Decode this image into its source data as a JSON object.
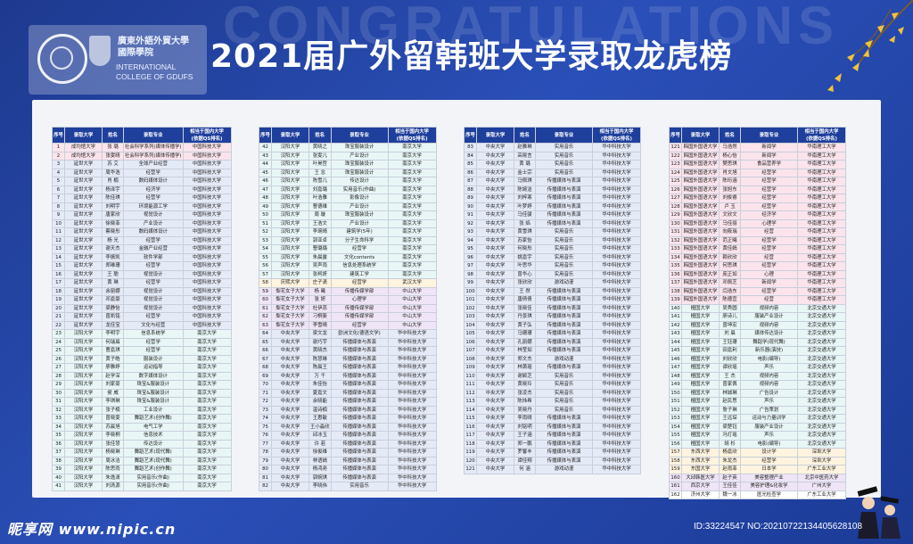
{
  "background_word": "CONGRATULATIONS",
  "title": "2021届广外留韩班大学录取龙虎榜",
  "logo": {
    "name_cn_line1": "廣東外語外貿大學",
    "name_cn_line2": "國際學院",
    "name_en_line1": "INTERNATIONAL",
    "name_en_line2": "COLLEGE OF GDUFS"
  },
  "headers": {
    "seq": "序号",
    "university": "录取大学",
    "name": "姓名",
    "major": "录取专业",
    "rank_line1": "相当于国内大学",
    "rank_line2": "(依据QS排名)"
  },
  "columns": [
    {
      "rows": [
        [
          "1",
          "成均馆大学",
          "张 璐",
          "社会科学系列(媒体传播学)",
          "中国科技大学"
        ],
        [
          "2",
          "成均馆大学",
          "张雯晴",
          "社会科学系列(媒体传播学)",
          "中国科技大学"
        ],
        [
          "3",
          "延世大学",
          "苏 艾",
          "全球产业经营",
          "中国科技大学"
        ],
        [
          "4",
          "延世大学",
          "周华浩",
          "经营学",
          "中国科技大学"
        ],
        [
          "5",
          "延世大学",
          "肖 楠",
          "数码媒体设计",
          "中国科技大学"
        ],
        [
          "6",
          "延世大学",
          "杨泽宇",
          "经济学",
          "中国科技大学"
        ],
        [
          "7",
          "延世大学",
          "陈佳琪",
          "经营学",
          "中国科技大学"
        ],
        [
          "8",
          "延世大学",
          "刘明宇",
          "环境能源工学",
          "中国科技大学"
        ],
        [
          "9",
          "延世大学",
          "唐家欣",
          "视觉设计",
          "中国科技大学"
        ],
        [
          "10",
          "延世大学",
          "徐晓菲",
          "产业设计",
          "中国科技大学"
        ],
        [
          "11",
          "延世大学",
          "蔡晓彤",
          "数码媒体设计",
          "中国科技大学"
        ],
        [
          "12",
          "延世大学",
          "杨 光",
          "经营学",
          "中国科技大学"
        ],
        [
          "13",
          "延世大学",
          "谢天杰",
          "金融产业经营",
          "中国科技大学"
        ],
        [
          "14",
          "延世大学",
          "李振凯",
          "软件学部",
          "中国科技大学"
        ],
        [
          "15",
          "延世大学",
          "郑琳珊",
          "经营学",
          "中国科技大学"
        ],
        [
          "16",
          "延世大学",
          "王 聪",
          "视觉设计",
          "中国科技大学"
        ],
        [
          "17",
          "延世大学",
          "黄 琳",
          "经营学",
          "中国科技大学"
        ],
        [
          "18",
          "延世大学",
          "余丽娜",
          "视觉设计",
          "中国科技大学"
        ],
        [
          "19",
          "延世大学",
          "邓嘉豪",
          "视觉设计",
          "中国科技大学"
        ],
        [
          "20",
          "延世大学",
          "梁静怡",
          "视觉设计",
          "中国科技大学"
        ],
        [
          "21",
          "延世大学",
          "曾凯铭",
          "经营学",
          "中国科技大学"
        ],
        [
          "22",
          "延世大学",
          "龙佳宝",
          "文化与经营",
          "中国科技大学"
        ],
        [
          "23",
          "汉阳大学",
          "李明宇",
          "信息系统学",
          "南京大学"
        ],
        [
          "24",
          "汉阳大学",
          "何瑞晨",
          "经营学",
          "南京大学"
        ],
        [
          "25",
          "汉阳大学",
          "曹嘉琪",
          "经营学",
          "南京大学"
        ],
        [
          "26",
          "汉阳大学",
          "黄子皓",
          "服装设计",
          "南京大学"
        ],
        [
          "27",
          "汉阳大学",
          "廖雅婷",
          "运动指导",
          "南京大学"
        ],
        [
          "28",
          "汉阳大学",
          "赵学深",
          "数字媒体设计",
          "南京大学"
        ],
        [
          "29",
          "汉阳大学",
          "刘家豪",
          "珠宝&服装设计",
          "南京大学"
        ],
        [
          "30",
          "汉阳大学",
          "侯 威",
          "珠宝&服装设计",
          "南京大学"
        ],
        [
          "31",
          "汉阳大学",
          "李琪琳",
          "珠宝&服装设计",
          "南京大学"
        ],
        [
          "32",
          "汉阳大学",
          "张子楠",
          "工业设计",
          "南京大学"
        ],
        [
          "33",
          "汉阳大学",
          "曾晓雯",
          "舞蹈艺术(创作舞)",
          "南京大学"
        ],
        [
          "34",
          "汉阳大学",
          "苏晨旭",
          "电气工学",
          "南京大学"
        ],
        [
          "35",
          "汉阳大学",
          "李晓桐",
          "信息技术",
          "南京大学"
        ],
        [
          "36",
          "汉阳大学",
          "张佳慧",
          "传达设计",
          "南京大学"
        ],
        [
          "37",
          "汉阳大学",
          "杨晓琳",
          "舞蹈艺术(现代舞)",
          "南京大学"
        ],
        [
          "38",
          "汉阳大学",
          "周冰洁",
          "舞蹈艺术(现代舞)",
          "南京大学"
        ],
        [
          "39",
          "汉阳大学",
          "陈思雨",
          "舞蹈艺术(创作舞)",
          "南京大学"
        ],
        [
          "40",
          "汉阳大学",
          "朱逸潇",
          "实用音乐(作曲)",
          "南京大学"
        ],
        [
          "41",
          "汉阳大学",
          "刘清源",
          "实用音乐(作曲)",
          "南京大学"
        ]
      ]
    },
    {
      "rows": [
        [
          "42",
          "汉阳大学",
          "黄晓之",
          "珠宝服装设计",
          "南京大学"
        ],
        [
          "43",
          "汉阳大学",
          "张雯儿",
          "产业设计",
          "南京大学"
        ],
        [
          "44",
          "汉阳大学",
          "叶昊哲",
          "珠宝服装设计",
          "南京大学"
        ],
        [
          "45",
          "汉阳大学",
          "王 念",
          "珠宝服装设计",
          "南京大学"
        ],
        [
          "46",
          "汉阳大学",
          "陈雪儿",
          "传达设计",
          "南京大学"
        ],
        [
          "47",
          "汉阳大学",
          "刘嘉璐",
          "实用音乐(作曲)",
          "南京大学"
        ],
        [
          "48",
          "汉阳大学",
          "叶浩雅",
          "影像设计",
          "南京大学"
        ],
        [
          "49",
          "汉阳大学",
          "曹德维",
          "产业设计",
          "南京大学"
        ],
        [
          "50",
          "汉阳大学",
          "周 璇",
          "珠宝服装设计",
          "南京大学"
        ],
        [
          "51",
          "汉阳大学",
          "王浩文",
          "产业设计",
          "南京大学"
        ],
        [
          "52",
          "汉阳大学",
          "李琬晴",
          "建筑学(5年)",
          "南京大学"
        ],
        [
          "53",
          "汉阳大学",
          "郭亚卓",
          "分子生命科学",
          "南京大学"
        ],
        [
          "54",
          "汉阳大学",
          "曹璐璐",
          "经营学",
          "南京大学"
        ],
        [
          "55",
          "汉阳大学",
          "朱晨露",
          "文化contents",
          "南京大学"
        ],
        [
          "56",
          "汉阳大学",
          "吴声雨",
          "信息处理系统学",
          "南京大学"
        ],
        [
          "57",
          "汉阳大学",
          "张柯妍",
          "建筑工学",
          "南京大学"
        ],
        [
          "58",
          "庆熙大学",
          "庄子潇",
          "经营学",
          "武汉大学"
        ],
        [
          "59",
          "梨花女子大学",
          "杨 曦",
          "传播传媒学部",
          "中山大学"
        ],
        [
          "60",
          "梨花女子大学",
          "张 妍",
          "心理学",
          "中山大学"
        ],
        [
          "61",
          "梨花女子大学",
          "杜伊蕊",
          "传播传媒学部",
          "中山大学"
        ],
        [
          "62",
          "梨花女子大学",
          "刁桐斐",
          "传播传媒学部",
          "中山大学"
        ],
        [
          "63",
          "梨花女子大学",
          "李雪晴",
          "经营学",
          "中山大学"
        ],
        [
          "64",
          "中央大学",
          "梁文龙",
          "欧洲文化(德语文学)",
          "华中科技大学"
        ],
        [
          "65",
          "中央大学",
          "谢巧宇",
          "传播媒体与表演",
          "华中科技大学"
        ],
        [
          "66",
          "中央大学",
          "黄晓杰",
          "传播媒体与表演",
          "华中科技大学"
        ],
        [
          "67",
          "中央大学",
          "陈慧琳",
          "传播媒体与表演",
          "华中科技大学"
        ],
        [
          "68",
          "中央大学",
          "陈晨王",
          "传播媒体与表演",
          "华中科技大学"
        ],
        [
          "69",
          "中央大学",
          "万 千",
          "传播媒体与表演",
          "华中科技大学"
        ],
        [
          "70",
          "中央大学",
          "朱佳怡",
          "传播媒体与表演",
          "华中科技大学"
        ],
        [
          "71",
          "中央大学",
          "夏嘉文",
          "传播媒体与表演",
          "华中科技大学"
        ],
        [
          "72",
          "中央大学",
          "余晓能",
          "传播媒体与表演",
          "华中科技大学"
        ],
        [
          "73",
          "中央大学",
          "温诗楠",
          "传播媒体与表演",
          "华中科技大学"
        ],
        [
          "74",
          "中央大学",
          "王惠敏",
          "传播媒体与表演",
          "华中科技大学"
        ],
        [
          "75",
          "中央大学",
          "王小淼欣",
          "传播媒体与表演",
          "华中科技大学"
        ],
        [
          "76",
          "中央大学",
          "邱冰玉",
          "传播媒体与表演",
          "华中科技大学"
        ],
        [
          "77",
          "中央大学",
          "许 若",
          "传播媒体与表演",
          "华中科技大学"
        ],
        [
          "78",
          "中央大学",
          "徐俊维",
          "传播媒体与表演",
          "华中科技大学"
        ],
        [
          "79",
          "中央大学",
          "林语嫣",
          "传播媒体与表演",
          "华中科技大学"
        ],
        [
          "80",
          "中央大学",
          "杨鸿尧",
          "传播媒体与表演",
          "华中科技大学"
        ],
        [
          "81",
          "中央大学",
          "郭婉琪",
          "传播媒体与表演",
          "华中科技大学"
        ],
        [
          "82",
          "中央大学",
          "李晓伟",
          "实用音乐",
          "华中科技大学"
        ]
      ]
    },
    {
      "rows": [
        [
          "83",
          "中央大学",
          "赵雅琳",
          "实用音乐",
          "华中科技大学"
        ],
        [
          "84",
          "中央大学",
          "高晓言",
          "实用音乐",
          "华中科技大学"
        ],
        [
          "85",
          "中央大学",
          "黄 璐",
          "实用音乐",
          "华中科技大学"
        ],
        [
          "86",
          "中央大学",
          "金士宗",
          "实用音乐",
          "华中科技大学"
        ],
        [
          "87",
          "中央大学",
          "马佩琪",
          "传播媒体与表演",
          "华中科技大学"
        ],
        [
          "88",
          "中央大学",
          "陈婉洁",
          "传播媒体与表演",
          "华中科技大学"
        ],
        [
          "89",
          "中央大学",
          "刘梓寒",
          "传播媒体与表演",
          "华中科技大学"
        ],
        [
          "90",
          "中央大学",
          "叶梦婷",
          "传播媒体与表演",
          "华中科技大学"
        ],
        [
          "91",
          "中央大学",
          "马佳骏",
          "传播媒体与表演",
          "华中科技大学"
        ],
        [
          "92",
          "中央大学",
          "张 焰",
          "传播媒体与表演",
          "华中科技大学"
        ],
        [
          "93",
          "中央大学",
          "黄雪琪",
          "实用音乐",
          "华中科技大学"
        ],
        [
          "94",
          "中央大学",
          "苏家怡",
          "实用音乐",
          "华中科技大学"
        ],
        [
          "95",
          "中央大学",
          "何晓彤",
          "实用音乐",
          "华中科技大学"
        ],
        [
          "96",
          "中央大学",
          "姚嘉宇",
          "实用音乐",
          "华中科技大学"
        ],
        [
          "97",
          "中央大学",
          "叶思华",
          "实用音乐",
          "华中科技大学"
        ],
        [
          "98",
          "中央大学",
          "曾华心",
          "实用音乐",
          "华中科技大学"
        ],
        [
          "99",
          "中央大学",
          "张欣欣",
          "游戏动漫",
          "华中科技大学"
        ],
        [
          "100",
          "中央大学",
          "王 然",
          "传播媒体与表演",
          "华中科技大学"
        ],
        [
          "101",
          "中央大学",
          "唐倩倩",
          "传播媒体与表演",
          "华中科技大学"
        ],
        [
          "102",
          "中央大学",
          "张晓佳",
          "传播媒体与表演",
          "华中科技大学"
        ],
        [
          "103",
          "中央大学",
          "丹景琪",
          "传播媒体与表演",
          "华中科技大学"
        ],
        [
          "104",
          "中央大学",
          "黄子弘",
          "传播媒体与表演",
          "华中科技大学"
        ],
        [
          "105",
          "中央大学",
          "马珊珊",
          "传播媒体与表演",
          "华中科技大学"
        ],
        [
          "106",
          "中央大学",
          "孔丽娜",
          "传播媒体与表演",
          "华中科技大学"
        ],
        [
          "107",
          "中央大学",
          "林莹如",
          "传播媒体与表演",
          "华中科技大学"
        ],
        [
          "108",
          "中央大学",
          "郑文杰",
          "游戏动漫",
          "华中科技大学"
        ],
        [
          "109",
          "中央大学",
          "林萧瑶",
          "传播媒体与表演",
          "华中科技大学"
        ],
        [
          "110",
          "中央大学",
          "谢颖芝",
          "实用音乐",
          "华中科技大学"
        ],
        [
          "111",
          "中央大学",
          "黄晓玲",
          "实用音乐",
          "华中科技大学"
        ],
        [
          "112",
          "中央大学",
          "张凌杰",
          "实用音乐",
          "华中科技大学"
        ],
        [
          "113",
          "中央大学",
          "陈炜希",
          "实用音乐",
          "华中科技大学"
        ],
        [
          "114",
          "中央大学",
          "吴晓丹",
          "实用音乐",
          "华中科技大学"
        ],
        [
          "115",
          "中央大学",
          "李雨晴",
          "传播媒体与表演",
          "华中科技大学"
        ],
        [
          "116",
          "中央大学",
          "刘铭明",
          "传播媒体与表演",
          "华中科技大学"
        ],
        [
          "117",
          "中央大学",
          "王子涵",
          "传播媒体与表演",
          "华中科技大学"
        ],
        [
          "118",
          "中央大学",
          "郑一鹏",
          "传播媒体与表演",
          "华中科技大学"
        ],
        [
          "119",
          "中央大学",
          "罗馨丰",
          "传播媒体与表演",
          "华中科技大学"
        ],
        [
          "120",
          "中央大学",
          "谭佳翔",
          "传播媒体与表演",
          "华中科技大学"
        ],
        [
          "121",
          "中央大学",
          "何 涵",
          "游戏动漫",
          "华中科技大学"
        ]
      ]
    },
    {
      "rows": [
        [
          "121",
          "韩国外国语大学",
          "马浩然",
          "新闻学",
          "华南理工大学"
        ],
        [
          "122",
          "韩国外国语大学",
          "杨心怡",
          "新闻学",
          "华南理工大学"
        ],
        [
          "123",
          "韩国外国语大学",
          "樊思琪",
          "食品营养学",
          "华南理工大学"
        ],
        [
          "124",
          "韩国外国语大学",
          "肖文旭",
          "经营学",
          "华南理工大学"
        ],
        [
          "125",
          "韩国外国语大学",
          "陈珩涵",
          "经营学",
          "华南理工大学"
        ],
        [
          "126",
          "韩国外国语大学",
          "张旭东",
          "经营学",
          "华南理工大学"
        ],
        [
          "127",
          "韩国外国语大学",
          "刘俊睿",
          "经营学",
          "华南理工大学"
        ],
        [
          "128",
          "韩国外国语大学",
          "卢 玉",
          "经营学",
          "华南理工大学"
        ],
        [
          "129",
          "韩国外国语大学",
          "文欣文",
          "经济学",
          "华南理工大学"
        ],
        [
          "130",
          "韩国外国语大学",
          "马佳丽",
          "心理学",
          "华南理工大学"
        ],
        [
          "131",
          "韩国外国语大学",
          "向筱瑞",
          "经营",
          "华南理工大学"
        ],
        [
          "132",
          "韩国外国语大学",
          "范正曦",
          "经营学",
          "华南理工大学"
        ],
        [
          "133",
          "韩国外国语大学",
          "黄佳嫣",
          "经营学",
          "华南理工大学"
        ],
        [
          "134",
          "韩国外国语大学",
          "赖欣欣",
          "经营",
          "华南理工大学"
        ],
        [
          "135",
          "韩国外国语大学",
          "何思琪",
          "经营学",
          "华南理工大学"
        ],
        [
          "136",
          "韩国外国语大学",
          "庞正如",
          "心理",
          "华南理工大学"
        ],
        [
          "137",
          "韩国外国语大学",
          "邓佩芝",
          "新闻学",
          "华南理工大学"
        ],
        [
          "138",
          "韩国外国语大学",
          "闫浩东",
          "经营学",
          "华南理工大学"
        ],
        [
          "139",
          "韩国外国语大学",
          "陈德宜",
          "经营",
          "华南理工大学"
        ],
        [
          "140",
          "檀国大学",
          "吴秀圆",
          "视频内容",
          "北京交通大学"
        ],
        [
          "141",
          "檀国大学",
          "廖诗儿",
          "服装产业设计",
          "北京交通大学"
        ],
        [
          "142",
          "檀国大学",
          "曾坤宏",
          "视频内容",
          "北京交通大学"
        ],
        [
          "143",
          "檀国大学",
          "刘 晨",
          "媒体传达设计",
          "北京交通大学"
        ],
        [
          "144",
          "檀国大学",
          "王钰珊",
          "舞蹈学(现代舞)",
          "北京交通大学"
        ],
        [
          "145",
          "檀国大学",
          "田嘉利",
          "新乐器(演技)",
          "北京交通大学"
        ],
        [
          "146",
          "檀国大学",
          "刘欣欣",
          "电影(编导)",
          "北京交通大学"
        ],
        [
          "147",
          "檀国大学",
          "谭欣瑶",
          "声乐",
          "北京交通大学"
        ],
        [
          "148",
          "檀国大学",
          "王 杰",
          "视频内容",
          "北京交通大学"
        ],
        [
          "149",
          "檀国大学",
          "曾家佩",
          "视频内容",
          "北京交通大学"
        ],
        [
          "150",
          "檀国大学",
          "林城琳",
          "广告设计",
          "北京交通大学"
        ],
        [
          "151",
          "檀国大学",
          "赵民思",
          "声乐",
          "北京交通大学"
        ],
        [
          "152",
          "檀国大学",
          "詹子琳",
          "广告策划",
          "北京交通大学"
        ],
        [
          "153",
          "檀国大学",
          "王远琛",
          "运动与力量训学",
          "北京交通大学"
        ],
        [
          "154",
          "檀国大学",
          "梁楚钰",
          "服装产业设计",
          "北京交通大学"
        ],
        [
          "155",
          "檀国大学",
          "冯灯瑶",
          "声乐",
          "北京交通大学"
        ],
        [
          "156",
          "檀国大学",
          "胡 杉",
          "电影(编导)",
          "北京交通大学"
        ],
        [
          "157",
          "东西大学",
          "杨嘉欣",
          "设计学",
          "深圳大学"
        ],
        [
          "158",
          "东西大学",
          "朱龙杰",
          "经营学",
          "深圳大学"
        ],
        [
          "159",
          "东国大学",
          "赵雨菲",
          "日本学",
          "广东工业大学"
        ],
        [
          "160",
          "大邱韩医大学",
          "赵子英",
          "美容整理产业",
          "北京中医药大学"
        ],
        [
          "161",
          "西京大学",
          "王佳佳",
          "美容护理&化妆学",
          "广州大学"
        ],
        [
          "162",
          "济州大学",
          "魏一冰",
          "医光检查学",
          "广东工业大学"
        ]
      ]
    }
  ],
  "footer": {
    "watermark": "昵享网 www.nipic.cn",
    "image_id": "ID:33224547 NO:20210722134405628108"
  },
  "colors": {
    "background": "#2a4fb8",
    "header": "#1f3f9c",
    "row_tints": [
      "#ffffff",
      "#fbe4ec",
      "#e5eaf7",
      "#e8f6f6",
      "#fff4df",
      "#efe5f6"
    ]
  }
}
